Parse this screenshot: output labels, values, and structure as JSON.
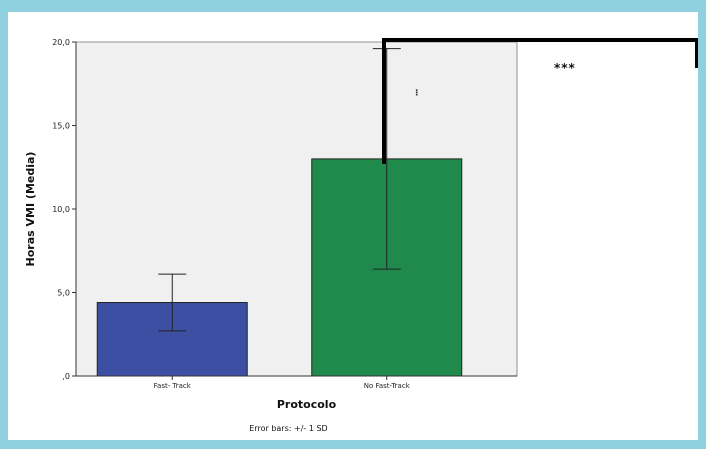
{
  "chart_data": {
    "type": "bar",
    "categories": [
      "Fast- Track",
      "No Fast-Track"
    ],
    "values": [
      4.4,
      13.0
    ],
    "error_bars": [
      [
        2.7,
        6.1
      ],
      [
        6.4,
        19.6
      ]
    ],
    "colors": [
      "#3d4fa3",
      "#1f8a4c"
    ],
    "xlabel": "Protocolo",
    "ylabel": "Horas VMI (Media)",
    "ylim": [
      0,
      20
    ],
    "yticks": [
      0,
      5,
      10,
      15,
      20
    ],
    "ytick_labels": [
      ",0",
      "5,0",
      "10,0",
      "15,0",
      "20,0"
    ],
    "plot_background": "#f0f0f0",
    "footnote": "Error bars: +/- 1 SD",
    "annotations": {
      "significance": "***",
      "outlier_marker": "⁝"
    }
  }
}
